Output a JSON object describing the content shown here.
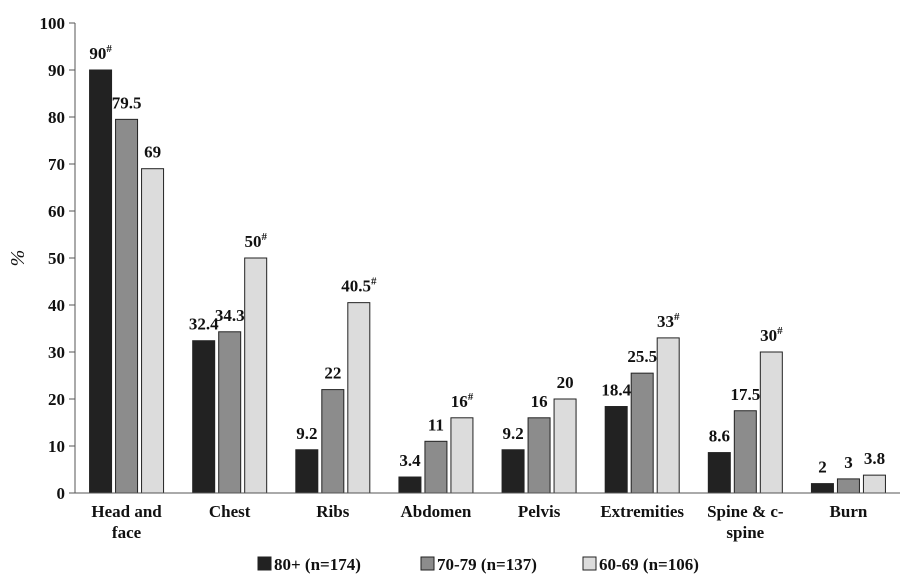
{
  "chart_data": {
    "type": "bar",
    "title": "",
    "xlabel": "",
    "ylabel": "%",
    "ylim": [
      0,
      100
    ],
    "yticks": [
      0,
      10,
      20,
      30,
      40,
      50,
      60,
      70,
      80,
      90,
      100
    ],
    "grid": false,
    "legend_position": "bottom",
    "categories": [
      [
        "Head and",
        "face"
      ],
      [
        "Chest"
      ],
      [
        "Ribs"
      ],
      [
        "Abdomen"
      ],
      [
        "Pelvis"
      ],
      [
        "Extremities"
      ],
      [
        "Spine & c-",
        "spine"
      ],
      [
        "Burn"
      ]
    ],
    "series": [
      {
        "name": "80+ (n=174)",
        "color": "#222222",
        "values": [
          90,
          32.4,
          9.2,
          3.4,
          9.2,
          18.4,
          8.6,
          2
        ],
        "labels": [
          "90#",
          "32.4",
          "9.2",
          "3.4",
          "9.2",
          "18.4",
          "8.6",
          "2"
        ]
      },
      {
        "name": "70-79 (n=137)",
        "color": "#8c8c8c",
        "values": [
          79.5,
          34.3,
          22,
          11,
          16,
          25.5,
          17.5,
          3
        ],
        "labels": [
          "79.5",
          "34.3",
          "22",
          "11",
          "16",
          "25.5",
          "17.5",
          "3"
        ]
      },
      {
        "name": "60-69 (n=106)",
        "color": "#dcdcdc",
        "values": [
          69,
          50,
          40.5,
          16,
          20,
          33,
          30,
          3.8
        ],
        "labels": [
          "69",
          "50#",
          "40.5#",
          "16#",
          "20",
          "33#",
          "30#",
          "3.8"
        ]
      }
    ]
  }
}
